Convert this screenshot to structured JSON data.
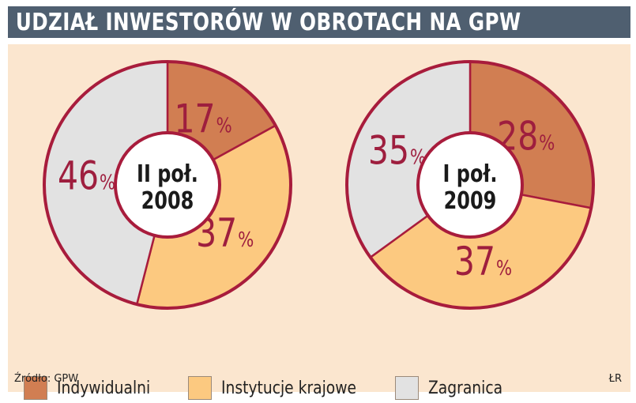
{
  "title": "UDZIAŁ INWESTORÓW W OBROTACH NA GPW",
  "colors": {
    "individual": "#d17e52",
    "institutional": "#fcc980",
    "foreign": "#e2e2e2",
    "ring": "#a81c3c",
    "label": "#9e1e3e",
    "panel": "#fbe6cf",
    "title_bar": "#4f5f70"
  },
  "chart_data": [
    {
      "type": "pie",
      "center_label": [
        "II poł.",
        "2008"
      ],
      "slices": [
        {
          "name": "Indywidualni",
          "value": 17,
          "label": "17"
        },
        {
          "name": "Instytucje krajowe",
          "value": 37,
          "label": "37"
        },
        {
          "name": "Zagranica",
          "value": 46,
          "label": "46"
        }
      ]
    },
    {
      "type": "pie",
      "center_label": [
        "I poł.",
        "2009"
      ],
      "slices": [
        {
          "name": "Indywidualni",
          "value": 28,
          "label": "28"
        },
        {
          "name": "Instytucje krajowe",
          "value": 37,
          "label": "37"
        },
        {
          "name": "Zagranica",
          "value": 35,
          "label": "35"
        }
      ]
    }
  ],
  "percent_sign": "%",
  "legend": [
    {
      "label": "Indywidualni",
      "color_key": "individual"
    },
    {
      "label": "Instytucje krajowe",
      "color_key": "institutional"
    },
    {
      "label": "Zagranica",
      "color_key": "foreign"
    }
  ],
  "source": "Źródło: GPW",
  "credit": "ŁR"
}
